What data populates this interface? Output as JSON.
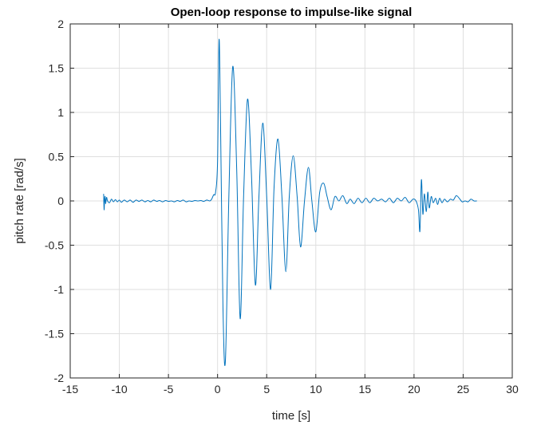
{
  "chart_data": {
    "type": "line",
    "title": "Open-loop response to impulse-like signal",
    "xlabel": "time [s]",
    "ylabel": "pitch rate [rad/s]",
    "xlim": [
      -15,
      30
    ],
    "ylim": [
      -2,
      2
    ],
    "xticks": [
      -15,
      -10,
      -5,
      0,
      5,
      10,
      15,
      20,
      25,
      30
    ],
    "yticks": [
      -2,
      -1.5,
      -1,
      -0.5,
      0,
      0.5,
      1,
      1.5,
      2
    ],
    "xtick_labels": [
      "-15",
      "-10",
      "-5",
      "0",
      "5",
      "10",
      "15",
      "20",
      "25",
      "30"
    ],
    "ytick_labels": [
      "-2",
      "-1.5",
      "-1",
      "-0.5",
      "0",
      "0.5",
      "1",
      "1.5",
      "2"
    ],
    "grid": true,
    "series": [
      {
        "color": "#0072bd",
        "x": [
          -11.6,
          -11.55,
          -11.5,
          -11.45,
          -11.4,
          -11.3,
          -11.2,
          -11.0,
          -10.8,
          -10.6,
          -10.4,
          -10.2,
          -10.0,
          -9.8,
          -9.5,
          -9.2,
          -8.9,
          -8.6,
          -8.3,
          -8.0,
          -7.7,
          -7.4,
          -7.1,
          -6.8,
          -6.5,
          -6.2,
          -5.9,
          -5.6,
          -5.3,
          -5.0,
          -4.7,
          -4.4,
          -4.1,
          -3.8,
          -3.5,
          -3.2,
          -2.9,
          -2.6,
          -2.3,
          -2.0,
          -1.7,
          -1.4,
          -1.1,
          -0.8,
          -0.6,
          -0.4,
          -0.2,
          0.0,
          0.15,
          0.3,
          0.55,
          0.8,
          1.15,
          1.55,
          1.95,
          2.3,
          2.65,
          3.05,
          3.45,
          3.85,
          4.2,
          4.6,
          5.0,
          5.4,
          5.75,
          6.15,
          6.55,
          6.95,
          7.3,
          7.7,
          8.1,
          8.45,
          8.85,
          9.25,
          9.6,
          10.0,
          10.4,
          10.8,
          11.15,
          11.55,
          11.95,
          12.35,
          12.75,
          13.15,
          13.5,
          13.9,
          14.3,
          14.7,
          15.1,
          15.5,
          15.9,
          16.3,
          16.7,
          17.1,
          17.5,
          17.9,
          18.3,
          18.7,
          19.1,
          19.5,
          19.9,
          20.2,
          20.45,
          20.6,
          20.75,
          20.9,
          21.05,
          21.25,
          21.4,
          21.55,
          21.75,
          21.95,
          22.2,
          22.4,
          22.6,
          22.85,
          23.1,
          23.4,
          23.7,
          24.0,
          24.3,
          24.6,
          24.9,
          25.2,
          25.5,
          25.8,
          26.1,
          26.4
        ],
        "y": [
          0.08,
          -0.1,
          0.02,
          0.05,
          -0.03,
          0.04,
          0.0,
          -0.02,
          0.02,
          -0.01,
          0.015,
          -0.01,
          0.01,
          -0.015,
          0.01,
          -0.01,
          0.01,
          -0.015,
          0.01,
          -0.005,
          0.01,
          -0.01,
          0.005,
          -0.01,
          0.01,
          -0.005,
          0.005,
          -0.01,
          0.005,
          -0.005,
          0.0,
          -0.01,
          0.005,
          -0.005,
          0.01,
          -0.01,
          0.0,
          -0.005,
          0.005,
          0.0,
          0.005,
          -0.005,
          0.01,
          0.0,
          0.02,
          0.07,
          0.1,
          0.45,
          1.82,
          0.9,
          -1.2,
          -1.8,
          0.05,
          1.52,
          0.35,
          -1.33,
          0.05,
          1.15,
          0.3,
          -0.95,
          0.02,
          0.88,
          0.05,
          -1.0,
          0.15,
          0.7,
          0.05,
          -0.8,
          0.05,
          0.51,
          0.05,
          -0.52,
          0.0,
          0.38,
          0.0,
          -0.35,
          0.1,
          0.2,
          0.05,
          -0.1,
          0.05,
          0.0,
          0.06,
          -0.03,
          0.02,
          -0.03,
          0.03,
          -0.02,
          0.03,
          -0.02,
          0.03,
          0.0,
          0.02,
          -0.01,
          0.03,
          -0.02,
          0.03,
          0.0,
          0.04,
          -0.02,
          0.02,
          0.0,
          -0.1,
          -0.34,
          0.24,
          -0.15,
          0.08,
          -0.12,
          0.1,
          -0.08,
          0.05,
          -0.02,
          0.03,
          -0.04,
          0.03,
          -0.02,
          0.02,
          -0.01,
          0.02,
          0.01,
          0.06,
          0.03,
          -0.01,
          0.0,
          -0.01,
          0.02,
          0.0,
          0.0
        ]
      }
    ]
  }
}
